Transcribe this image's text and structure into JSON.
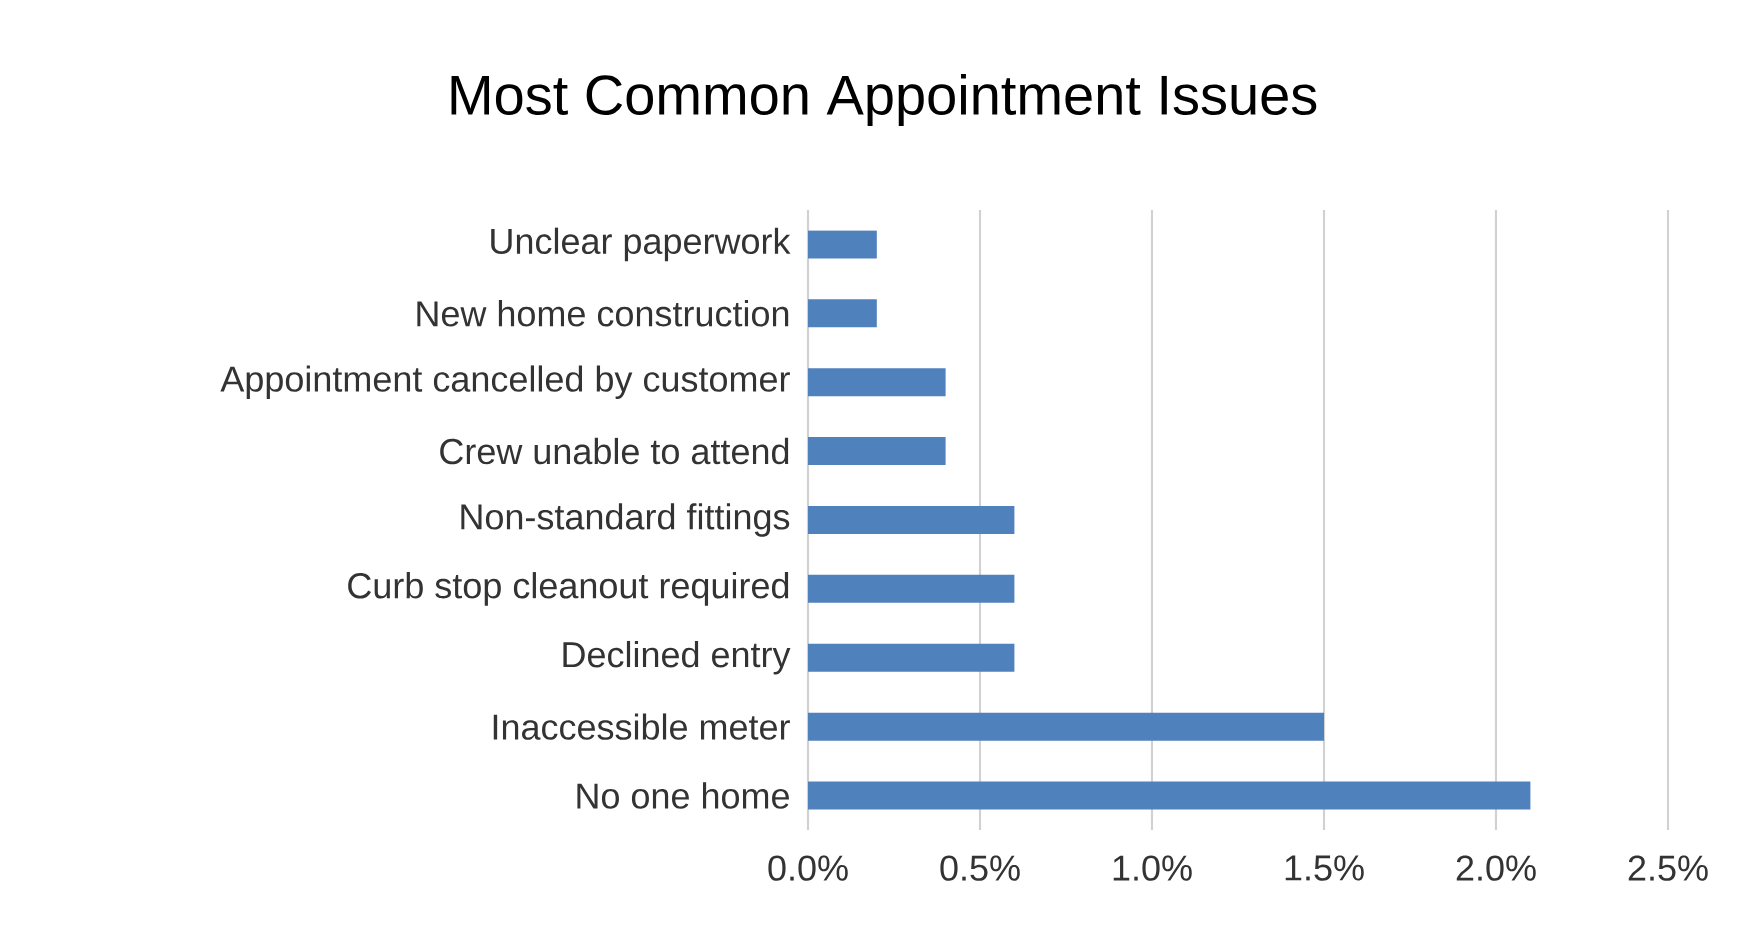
{
  "chart_data": {
    "type": "bar",
    "orientation": "horizontal",
    "title": "Most Common Appointment Issues",
    "categories": [
      "Unclear paperwork",
      "New home construction",
      "Appointment cancelled by customer",
      "Crew unable to attend",
      "Non-standard fittings",
      "Curb stop cleanout required",
      "Declined entry",
      "Inaccessible meter",
      "No one home"
    ],
    "values": [
      0.2,
      0.2,
      0.4,
      0.4,
      0.6,
      0.6,
      0.6,
      1.5,
      2.1
    ],
    "color": "#4f81bd",
    "xlim": [
      0,
      2.5
    ],
    "xticks": [
      {
        "value": 0,
        "label": "0.0%"
      },
      {
        "value": 0.5,
        "label": "0.5%"
      },
      {
        "value": 1.0,
        "label": "1.0%"
      },
      {
        "value": 1.5,
        "label": "1.5%"
      },
      {
        "value": 2.0,
        "label": "2.0%"
      },
      {
        "value": 2.5,
        "label": "2.5%"
      }
    ],
    "grid": "x"
  }
}
